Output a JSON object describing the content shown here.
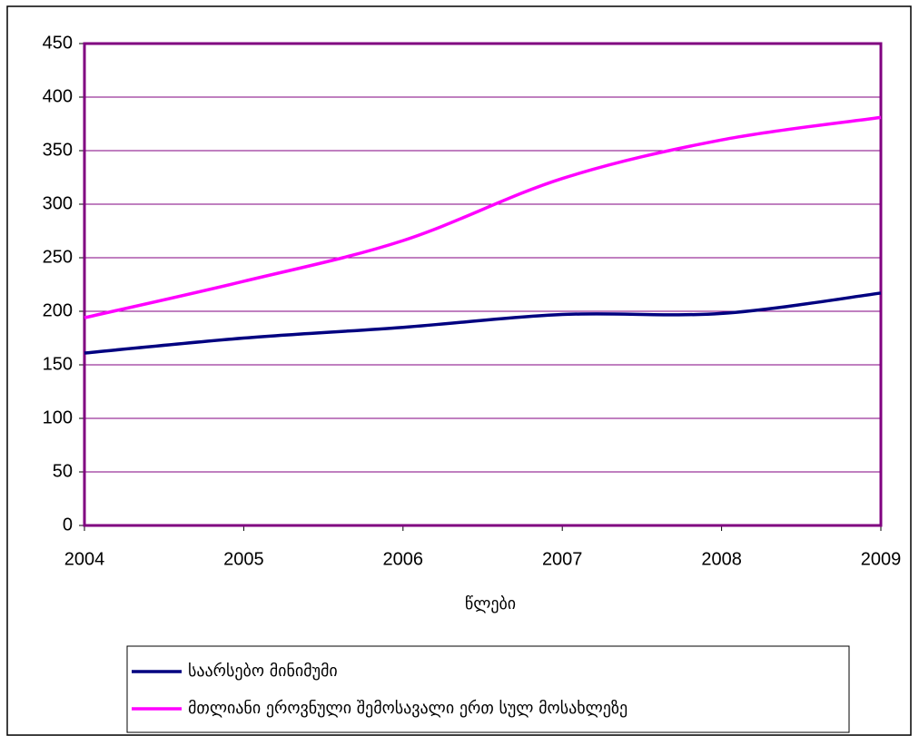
{
  "chart_data": {
    "type": "line",
    "x": [
      2004,
      2005,
      2006,
      2007,
      2008,
      2009
    ],
    "x_label": "წლები",
    "series": [
      {
        "name": "საარსებო მინიმუმი",
        "color": "#000080",
        "values": [
          161,
          175,
          185,
          197,
          198,
          217
        ]
      },
      {
        "name": "მთლიანი ეროვნული შემოსავალი ერთ სულ მოსახლეზე",
        "color": "#ff00ff",
        "values": [
          194,
          228,
          266,
          324,
          360,
          381
        ]
      }
    ],
    "xlim": [
      2004,
      2009
    ],
    "xticks": [
      2004,
      2005,
      2006,
      2007,
      2008,
      2009
    ],
    "ylim": [
      0,
      450
    ],
    "yticks": [
      0,
      50,
      100,
      150,
      200,
      250,
      300,
      350,
      400,
      450
    ],
    "grid": true,
    "grid_color": "#800080",
    "smooth": true
  }
}
